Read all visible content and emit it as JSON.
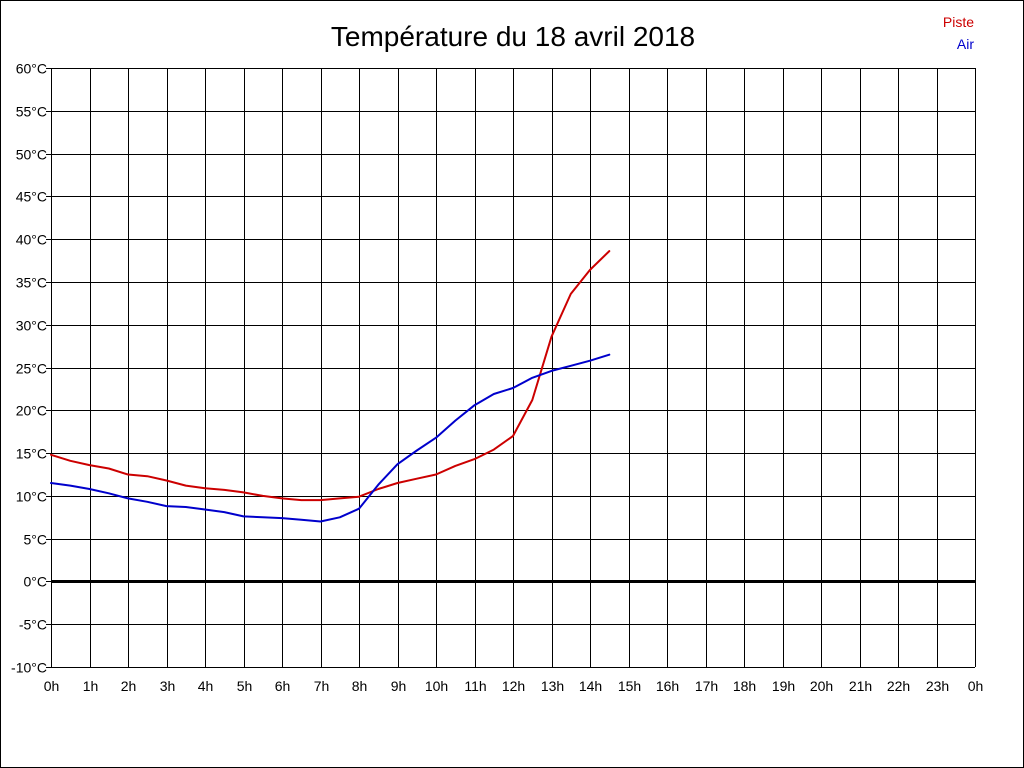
{
  "chart_data": {
    "type": "line",
    "title": "Température du 18 avril 2018",
    "x_ticks": [
      "0h",
      "1h",
      "2h",
      "3h",
      "4h",
      "5h",
      "6h",
      "7h",
      "8h",
      "9h",
      "10h",
      "11h",
      "12h",
      "13h",
      "14h",
      "15h",
      "16h",
      "17h",
      "18h",
      "19h",
      "20h",
      "21h",
      "22h",
      "23h",
      "0h"
    ],
    "y_ticks": [
      "60°C",
      "55°C",
      "50°C",
      "45°C",
      "40°C",
      "35°C",
      "30°C",
      "25°C",
      "20°C",
      "15°C",
      "10°C",
      "5°C",
      "0°C",
      "-5°C",
      "-10°C"
    ],
    "xlim": [
      0,
      24
    ],
    "ylim": [
      -10,
      60
    ],
    "grid": true,
    "legend_position": "top-right",
    "series": [
      {
        "name": "Piste",
        "color": "#cc0000",
        "x": [
          0,
          0.5,
          1,
          1.5,
          2,
          2.5,
          3,
          3.5,
          4,
          4.5,
          5,
          5.5,
          6,
          6.5,
          7,
          7.5,
          8,
          8.5,
          9,
          9.5,
          10,
          10.5,
          11,
          11.5,
          12,
          12.5,
          13,
          13.5,
          14,
          14.5
        ],
        "y": [
          14.8,
          14.1,
          13.6,
          13.2,
          12.5,
          12.3,
          11.8,
          11.2,
          10.9,
          10.7,
          10.4,
          10.0,
          9.7,
          9.5,
          9.5,
          9.7,
          9.9,
          10.8,
          11.5,
          12.0,
          12.5,
          13.5,
          14.3,
          15.4,
          17.0,
          21.2,
          28.6,
          33.6,
          36.4,
          38.6
        ]
      },
      {
        "name": "Air",
        "color": "#0000cc",
        "x": [
          0,
          0.5,
          1,
          1.5,
          2,
          2.5,
          3,
          3.5,
          4,
          4.5,
          5,
          5.5,
          6,
          6.5,
          7,
          7.5,
          8,
          8.5,
          9,
          9.5,
          10,
          10.5,
          11,
          11.5,
          12,
          12.5,
          13,
          13.5,
          14,
          14.5
        ],
        "y": [
          11.5,
          11.2,
          10.8,
          10.3,
          9.7,
          9.3,
          8.8,
          8.7,
          8.4,
          8.1,
          7.6,
          7.5,
          7.4,
          7.2,
          7.0,
          7.5,
          8.5,
          11.3,
          13.7,
          15.3,
          16.8,
          18.8,
          20.6,
          21.9,
          22.6,
          23.8,
          24.6,
          25.2,
          25.8,
          26.5
        ]
      }
    ]
  }
}
